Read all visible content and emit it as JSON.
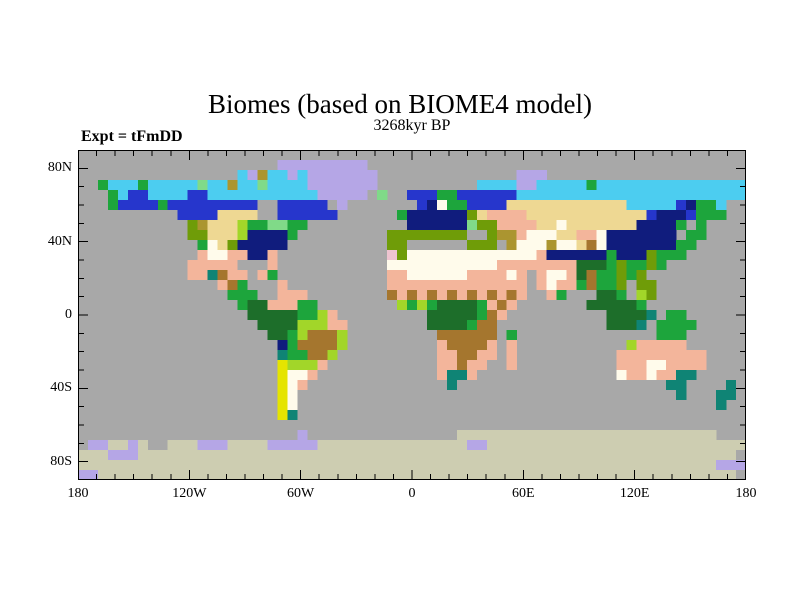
{
  "figure": {
    "title": "Biomes (based on BIOME4 model)",
    "subtitle": "3268kyr BP",
    "experiment_label": "Expt = tFmDD"
  },
  "axes": {
    "x": {
      "minor_step_deg": 10,
      "major_step_deg": 60,
      "ticks": [
        {
          "label": "180",
          "deg": -180
        },
        {
          "label": "120W",
          "deg": -120
        },
        {
          "label": "60W",
          "deg": -60
        },
        {
          "label": "0",
          "deg": 0
        },
        {
          "label": "60E",
          "deg": 60
        },
        {
          "label": "120E",
          "deg": 120
        },
        {
          "label": "180",
          "deg": 180
        }
      ]
    },
    "y": {
      "minor_step_deg": 10,
      "major_step_deg": 40,
      "ticks": [
        {
          "label": "80N",
          "deg": 80
        },
        {
          "label": "40N",
          "deg": 40
        },
        {
          "label": "0",
          "deg": 0
        },
        {
          "label": "40S",
          "deg": -40
        },
        {
          "label": "80S",
          "deg": -80
        }
      ]
    }
  },
  "chart_data": {
    "type": "heatmap",
    "title": "Biomes (based on BIOME4 model)",
    "subtitle": "3268kyr BP",
    "experiment": "Expt = tFmDD",
    "lon_range": [
      -180,
      180
    ],
    "lat_range": [
      90,
      -90
    ],
    "grid_cols": 67,
    "grid_rows": 33,
    "ocean_char": ".",
    "frame_color": "#000000",
    "palette": {
      ".": "#a8a8a8",
      "A": "#cdcdb1",
      "L": "#b5a6e6",
      "C": "#4ccdf0",
      "B": "#2636cc",
      "N": "#101c7d",
      "G": "#1d6e2a",
      "g": "#1da53c",
      "l": "#80da88",
      "y": "#a2d629",
      "o": "#6f9c08",
      "t": "#eed893",
      "s": "#f3b59b",
      "w": "#fffbeb",
      "b": "#a5762e",
      "d": "#ab9530",
      "T": "#0f8475",
      "Y": "#e5e400",
      "p": "#eec4d0"
    },
    "rows": [
      "...................................................................",
      "....................LLLLLLLLL......................................",
      "................CLdCCLCLLLLLLL..............LLL....................",
      "..gCCCgCCCCClCCdCClCCCCLLLLLLL..........CCCCLLCCCCCgCCCCCCCCCCCCCCC",
      "...gCBBCCCCBBCCCCCCCCCCCLLLLL.l..BBBggBBBBBBCCCCCCCCCCCCCCCCCCCCCCC",
      "...gBBBBgBBBBBBBBB..BBBBB.L.......BNwggB BBBttttttttttttCCCCCBNggC..",
      "..........BBBBtttt..BBBBBB......gNNNNNNotssssttttttttttttBNNNBggg..",
      "...........odtttyggllgg..........NNNNNNloossssttwtttttttNNNNg.g....",
      "...........ootttyNNNNg.........oooooooo..oddswwwttsswNNNNNNN.gg....",
      "............gwtoNNNNN..........oo......ooo.dwwwdwwtbwNNNNNNNgg.....",
      "............swwssNNs...........powwwwwwwwwwwwwsNNNNNNgNNNoggg......",
      "...........sssss...s...........wwwwwwwwwwwssssssssGGGgoggog........",
      "...........ssTbss.sg...........sswwwwwwssssws.swwsGbggogo..........",
      "..............sbg...s..........ssssssssssssss.swssgbggo.oo.........",
      "...............ggg..sss........bsbsbsbsbsbsbs..sg...GGg.yo.........",
      "................gGGsssgg........ygygGGGGgsbs.......GGGGGg..........",
      ".................GGGGGggys.........GGGGGgbs..........GGGGT.gg......",
      "..................GGGGyyyss........GGGGgbb...........GGGT.gggg.....",
      "...................GGgybbby.........bbbbbb.g..............ggg......",
      "....................Ngbbbby.........sbbbbs.s...........ysssss......",
      "....................Tggbby..........ssbbss.s..........sssssssss....",
      "....................Yyyys...........ssbss..s..........ssswwssss....",
      "....................Ywws............sTTs..............wsswssTT.....",
      "....................Yws..............T.....................TT....T.",
      "....................Yw......................................T...TT.",
      "....................Yw..........................................T..",
      "....................YT.............................................",
      "...................................................................",
      "......................L...............AAAAAAAAAAAAAAAAAAAAAAAAAA...",
      ".LLAALA..AAALLLAAAALLLLLAAAAAAAAAAAAAAALLAAAAAAAAAAAAAAAAAAAAAAAAAA",
      "AAALLLAAAAAAAAAAAAAAAAAAAAAAAAAAAAAAAAAAAAAAAAAAAAAAAAAAAAAAAAAAAA",
      "AAAAAAAAAAAAAAAAAAAAAAAAAAAAAAAAAAAAAAAAAAAAAAAAAAAAAAAAAAAAAAAALLL",
      "LLAAAAAAAAAAAAAAAAAAAAAAAAAAAAAAAAAAAAAAAAAAAAAAAAAAAAAAAAAAAAAAAA"
    ]
  }
}
